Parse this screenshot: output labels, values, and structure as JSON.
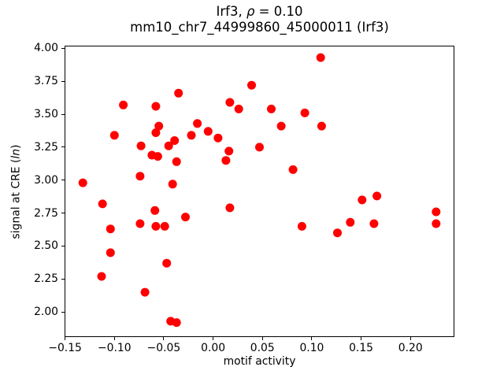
{
  "figure": {
    "title_line1": {
      "prefix": "Irf3, ",
      "italic": "ρ",
      "suffix": " = 0.10"
    },
    "title_line2": "mm10_chr7_44999860_45000011 (Irf3)",
    "background_color": "#ffffff",
    "frame_color": "#000000",
    "text_color": "#000000"
  },
  "chart_data": {
    "type": "scatter",
    "title": "Irf3, ρ = 0.10",
    "subtitle": "mm10_chr7_44999860_45000011 (Irf3)",
    "xlabel": "motif activity",
    "ylabel": "signal at CRE (ln)",
    "ylabel_parts": {
      "prefix": "signal at CRE (",
      "italic": "ln",
      "suffix": ")"
    },
    "xlim": [
      -0.1505,
      0.2445
    ],
    "ylim": [
      1.81,
      4.02
    ],
    "grid": false,
    "legend": "none",
    "marker": {
      "shape": "circle",
      "color": "#ff0000",
      "radius_px": 5.5
    },
    "xticks": {
      "values": [
        -0.15,
        -0.1,
        -0.05,
        0.0,
        0.05,
        0.1,
        0.15,
        0.2
      ],
      "labels": [
        "−0.15",
        "−0.10",
        "−0.05",
        "0.00",
        "0.05",
        "0.10",
        "0.15",
        "0.20"
      ]
    },
    "yticks": {
      "values": [
        2.0,
        2.25,
        2.5,
        2.75,
        3.0,
        3.25,
        3.5,
        3.75,
        4.0
      ],
      "labels": [
        "2.00",
        "2.25",
        "2.50",
        "2.75",
        "3.00",
        "3.25",
        "3.50",
        "3.75",
        "4.00"
      ]
    },
    "series": [
      {
        "name": "CRE signal vs motif activity",
        "color": "#ff0000",
        "points": [
          [
            -0.091,
            3.57
          ],
          [
            -0.035,
            3.66
          ],
          [
            -0.058,
            3.56
          ],
          [
            -0.055,
            3.41
          ],
          [
            -0.058,
            3.36
          ],
          [
            -0.1,
            3.34
          ],
          [
            -0.073,
            3.26
          ],
          [
            -0.045,
            3.26
          ],
          [
            -0.039,
            3.3
          ],
          [
            -0.062,
            3.19
          ],
          [
            -0.056,
            3.18
          ],
          [
            -0.037,
            3.14
          ],
          [
            -0.074,
            3.03
          ],
          [
            -0.132,
            2.98
          ],
          [
            -0.041,
            2.97
          ],
          [
            0.109,
            3.93
          ],
          [
            0.039,
            3.72
          ],
          [
            0.017,
            3.59
          ],
          [
            0.026,
            3.54
          ],
          [
            0.059,
            3.54
          ],
          [
            0.093,
            3.51
          ],
          [
            -0.016,
            3.43
          ],
          [
            0.069,
            3.41
          ],
          [
            0.11,
            3.41
          ],
          [
            -0.022,
            3.34
          ],
          [
            -0.005,
            3.37
          ],
          [
            0.005,
            3.32
          ],
          [
            0.047,
            3.25
          ],
          [
            0.016,
            3.22
          ],
          [
            0.013,
            3.15
          ],
          [
            0.081,
            3.08
          ],
          [
            -0.112,
            2.82
          ],
          [
            -0.059,
            2.77
          ],
          [
            -0.028,
            2.72
          ],
          [
            -0.074,
            2.67
          ],
          [
            -0.058,
            2.65
          ],
          [
            -0.049,
            2.65
          ],
          [
            -0.104,
            2.63
          ],
          [
            -0.104,
            2.45
          ],
          [
            -0.047,
            2.37
          ],
          [
            -0.113,
            2.27
          ],
          [
            -0.069,
            2.15
          ],
          [
            -0.043,
            1.93
          ],
          [
            -0.037,
            1.92
          ],
          [
            0.017,
            2.79
          ],
          [
            0.09,
            2.65
          ],
          [
            0.126,
            2.6
          ],
          [
            0.151,
            2.85
          ],
          [
            0.166,
            2.88
          ],
          [
            0.139,
            2.68
          ],
          [
            0.163,
            2.67
          ],
          [
            0.226,
            2.76
          ],
          [
            0.226,
            2.67
          ]
        ]
      }
    ]
  }
}
